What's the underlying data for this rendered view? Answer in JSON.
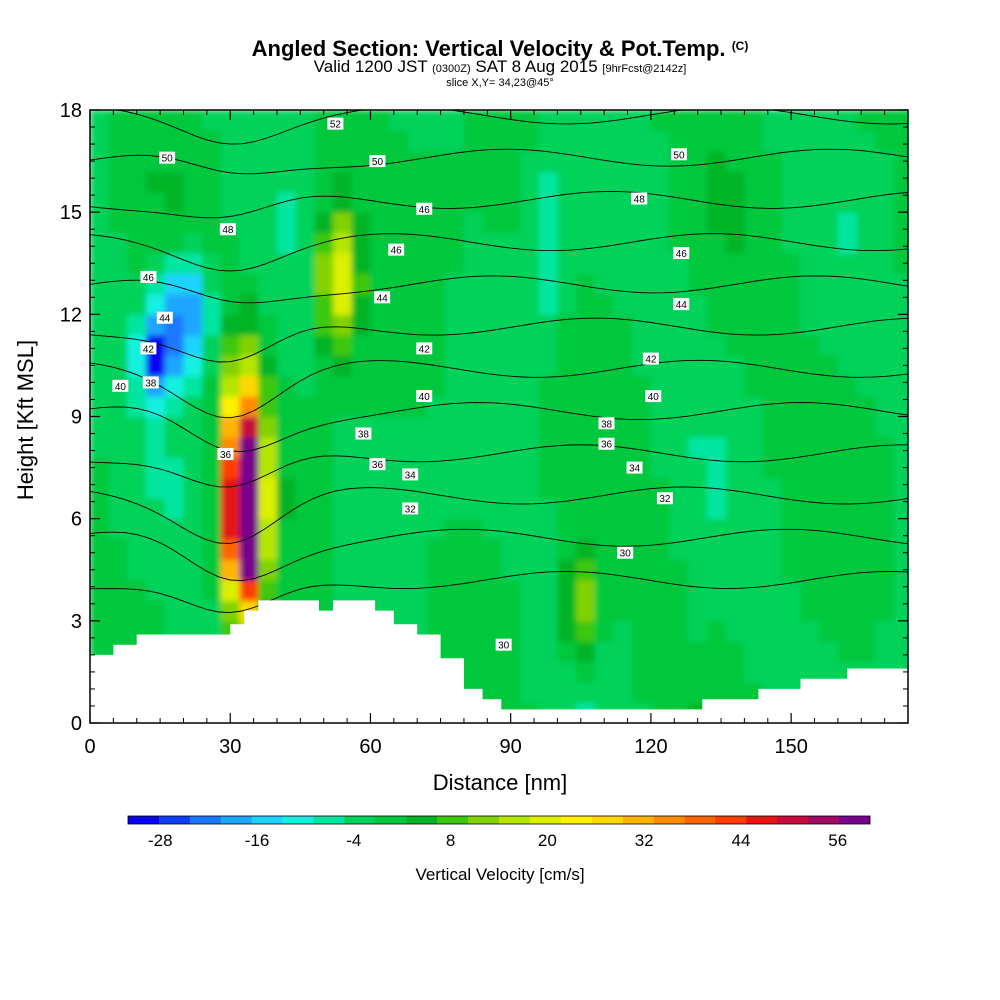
{
  "header": {
    "title_main": "Angled Section: Vertical Velocity & Pot.Temp.",
    "title_mark": "(C)",
    "valid_a": "Valid 1200 JST",
    "valid_zone": "(0300Z)",
    "valid_b": "SAT 8 Aug 2015",
    "forecast": "[9hrFcst@2142z]",
    "slice": "slice X,Y= 34,23@45°"
  },
  "chart_data": {
    "type": "heatmap",
    "xlabel": "Distance [nm]",
    "ylabel": "Height [Kft MSL]",
    "xlim": [
      0,
      175
    ],
    "ylim": [
      0,
      18
    ],
    "x_ticks": [
      0,
      30,
      60,
      90,
      120,
      150
    ],
    "y_ticks": [
      0,
      3,
      6,
      9,
      12,
      15,
      18
    ],
    "colorbar": {
      "title": "Vertical Velocity [cm/s]",
      "ticks": [
        -28,
        -16,
        -4,
        8,
        20,
        32,
        44,
        56
      ],
      "min": -32,
      "max": 60,
      "step": 4,
      "colors": [
        "#0a00f0",
        "#0f3cf5",
        "#1a78ff",
        "#1ea6ff",
        "#1ed3ff",
        "#14f0e0",
        "#00e6a0",
        "#00d25a",
        "#00c83c",
        "#00b428",
        "#3cc80a",
        "#82d200",
        "#b4e600",
        "#dcf000",
        "#fff000",
        "#ffd700",
        "#ffb400",
        "#ff8c00",
        "#ff6400",
        "#ff3c00",
        "#e61414",
        "#c80a3c",
        "#a00a64",
        "#78008c"
      ]
    },
    "terrain": [
      [
        0,
        2.0
      ],
      [
        5,
        2.0
      ],
      [
        5,
        2.3
      ],
      [
        10,
        2.3
      ],
      [
        10,
        2.6
      ],
      [
        30,
        2.6
      ],
      [
        30,
        2.9
      ],
      [
        33,
        2.9
      ],
      [
        33,
        3.3
      ],
      [
        36,
        3.3
      ],
      [
        36,
        3.6
      ],
      [
        49,
        3.6
      ],
      [
        49,
        3.3
      ],
      [
        52,
        3.3
      ],
      [
        52,
        3.6
      ],
      [
        61,
        3.6
      ],
      [
        61,
        3.3
      ],
      [
        65,
        3.3
      ],
      [
        65,
        2.9
      ],
      [
        70,
        2.9
      ],
      [
        70,
        2.6
      ],
      [
        75,
        2.6
      ],
      [
        75,
        1.9
      ],
      [
        80,
        1.9
      ],
      [
        80,
        1.0
      ],
      [
        84,
        1.0
      ],
      [
        84,
        0.7
      ],
      [
        88,
        0.7
      ],
      [
        88,
        0.4
      ],
      [
        131,
        0.4
      ],
      [
        131,
        0.7
      ],
      [
        143,
        0.7
      ],
      [
        143,
        1.0
      ],
      [
        152,
        1.0
      ],
      [
        152,
        1.3
      ],
      [
        162,
        1.3
      ],
      [
        162,
        1.6
      ],
      [
        175,
        1.6
      ],
      [
        175,
        0
      ],
      [
        0,
        0
      ]
    ],
    "cells": [
      {
        "x": 33,
        "y": 6.0,
        "rx": 3.4,
        "ry": 2.6,
        "value": 58
      },
      {
        "x": 33,
        "y": 7.2,
        "rx": 4.5,
        "ry": 3.5,
        "value": 40
      },
      {
        "x": 53,
        "y": 13.0,
        "rx": 4.5,
        "ry": 2.2,
        "value": 24
      },
      {
        "x": 105,
        "y": 3.3,
        "rx": 4.0,
        "ry": 1.5,
        "value": 18
      },
      {
        "x": 20,
        "y": 12.0,
        "rx": 6.0,
        "ry": 1.6,
        "value": -24
      },
      {
        "x": 14,
        "y": 10.7,
        "rx": 3.5,
        "ry": 1.0,
        "value": -28
      },
      {
        "x": 128,
        "y": 2.4,
        "rx": 1.5,
        "ry": 1.2,
        "value": -12
      },
      {
        "x": 98,
        "y": 14.2,
        "rx": 4.0,
        "ry": 2.5,
        "value": -8
      }
    ],
    "theta_levels": [
      30,
      32,
      34,
      36,
      38,
      40,
      42,
      44,
      46,
      48,
      50,
      52
    ],
    "theta_labels": [
      {
        "text": "52",
        "x": 52.5,
        "y": 17.6
      },
      {
        "text": "50",
        "x": 16.5,
        "y": 16.6
      },
      {
        "text": "50",
        "x": 61.5,
        "y": 16.5
      },
      {
        "text": "50",
        "x": 126,
        "y": 16.7
      },
      {
        "text": "48",
        "x": 29.5,
        "y": 14.5
      },
      {
        "text": "48",
        "x": 117.5,
        "y": 15.4
      },
      {
        "text": "46",
        "x": 12.5,
        "y": 13.1
      },
      {
        "text": "46",
        "x": 71.5,
        "y": 15.1
      },
      {
        "text": "46",
        "x": 65.5,
        "y": 13.9
      },
      {
        "text": "46",
        "x": 126.5,
        "y": 13.8
      },
      {
        "text": "44",
        "x": 16,
        "y": 11.9
      },
      {
        "text": "44",
        "x": 62.5,
        "y": 12.5
      },
      {
        "text": "44",
        "x": 126.5,
        "y": 12.3
      },
      {
        "text": "42",
        "x": 12.5,
        "y": 11.0
      },
      {
        "text": "42",
        "x": 71.5,
        "y": 11.0
      },
      {
        "text": "42",
        "x": 120,
        "y": 10.7
      },
      {
        "text": "40",
        "x": 6.5,
        "y": 9.9
      },
      {
        "text": "38",
        "x": 13,
        "y": 10.0
      },
      {
        "text": "40",
        "x": 71.5,
        "y": 9.6
      },
      {
        "text": "40",
        "x": 120.5,
        "y": 9.6
      },
      {
        "text": "38",
        "x": 58.5,
        "y": 8.5
      },
      {
        "text": "38",
        "x": 110.5,
        "y": 8.8
      },
      {
        "text": "36",
        "x": 29,
        "y": 7.9
      },
      {
        "text": "36",
        "x": 61.5,
        "y": 7.6
      },
      {
        "text": "36",
        "x": 110.5,
        "y": 8.2
      },
      {
        "text": "34",
        "x": 68.5,
        "y": 7.3
      },
      {
        "text": "34",
        "x": 116.5,
        "y": 7.5
      },
      {
        "text": "32",
        "x": 68.5,
        "y": 6.3
      },
      {
        "text": "32",
        "x": 123,
        "y": 6.6
      },
      {
        "text": "30",
        "x": 114.5,
        "y": 5.0
      },
      {
        "text": "30",
        "x": 88.5,
        "y": 2.3
      }
    ]
  }
}
